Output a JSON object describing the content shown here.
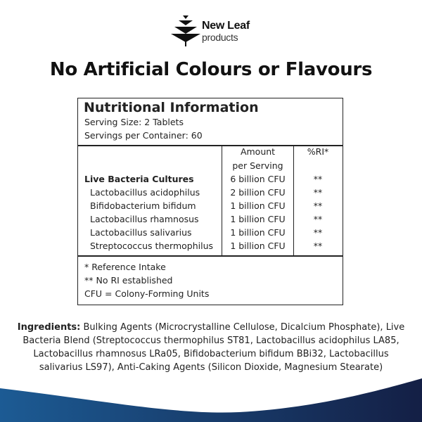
{
  "brand": {
    "name": "New Leaf",
    "sub": "products"
  },
  "headline": "No Artificial Colours or Flavours",
  "nutrition": {
    "title": "Nutritional Information",
    "serving_size": "Serving Size: 2 Tablets",
    "servings_per_container": "Servings per Container: 60",
    "col_amount_line1": "Amount",
    "col_amount_line2": "per Serving",
    "col_ri": "%RI*",
    "rows": [
      {
        "name": "Live Bacteria Cultures",
        "amount": "6 billion CFU",
        "ri": "**"
      },
      {
        "name": "Lactobacillus acidophilus",
        "amount": "2 billion CFU",
        "ri": "**"
      },
      {
        "name": "Bifidobacterium bifidum",
        "amount": "1 billion CFU",
        "ri": "**"
      },
      {
        "name": "Lactobacillus rhamnosus",
        "amount": "1 billion CFU",
        "ri": "**"
      },
      {
        "name": "Lactobacillus salivarius",
        "amount": "1 billion CFU",
        "ri": "**"
      },
      {
        "name": "Streptococcus thermophilus",
        "amount": "1 billion CFU",
        "ri": "**"
      }
    ],
    "footnotes": [
      "* Reference Intake",
      "** No RI established",
      "CFU = Colony-Forming Units"
    ]
  },
  "ingredients": {
    "label": "Ingredients:",
    "text": " Bulking Agents (Microcrystalline Cellulose, Dicalcium Phosphate), Live Bacteria Blend (Streptococcus thermophilus ST81, Lactobacillus acidophilus LA85, Lactobacillus rhamnosus LRa05, Bifidobacterium bifidum BBi32, Lactobacillus salivarius LS97), Anti-Caking Agents (Silicon Dioxide, Magnesium Stearate)"
  },
  "colors": {
    "wave_left": "#1c5b94",
    "wave_right": "#141f45"
  }
}
